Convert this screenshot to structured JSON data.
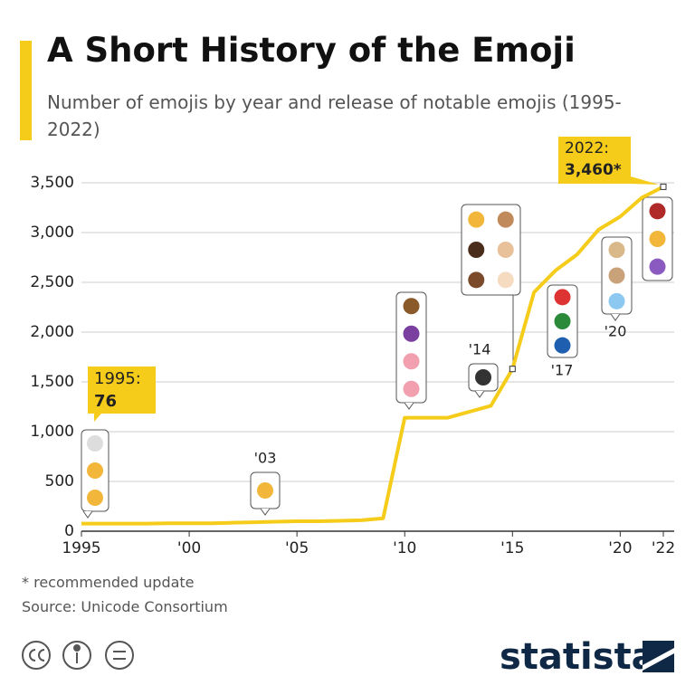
{
  "title": "A Short History of the Emoji",
  "subtitle": "Number of emojis by year and release of notable emojis (1995-2022)",
  "chart_data": {
    "type": "line",
    "x": [
      1995,
      1996,
      1997,
      1998,
      1999,
      2000,
      2001,
      2002,
      2003,
      2004,
      2005,
      2006,
      2007,
      2008,
      2009,
      2010,
      2011,
      2012,
      2013,
      2014,
      2015,
      2016,
      2017,
      2018,
      2019,
      2020,
      2021,
      2022
    ],
    "values": [
      76,
      76,
      76,
      76,
      80,
      80,
      80,
      85,
      90,
      95,
      100,
      100,
      105,
      110,
      130,
      1140,
      1140,
      1140,
      1200,
      1260,
      1630,
      2400,
      2620,
      2780,
      3030,
      3160,
      3350,
      3460
    ],
    "color": "#f5cc1a",
    "xlim": [
      1995,
      2022
    ],
    "xticks": [
      {
        "value": 1995,
        "label": "1995"
      },
      {
        "value": 2000,
        "label": "'00"
      },
      {
        "value": 2005,
        "label": "'05"
      },
      {
        "value": 2010,
        "label": "'10"
      },
      {
        "value": 2015,
        "label": "'15"
      },
      {
        "value": 2020,
        "label": "'20"
      },
      {
        "value": 2022,
        "label": "'22"
      }
    ],
    "ylim": [
      0,
      3500
    ],
    "yticks": [
      0,
      500,
      {
        "value": 1000,
        "label": "1,000"
      },
      {
        "value": 1500,
        "label": "1,500"
      },
      {
        "value": 2000,
        "label": "2,000"
      },
      {
        "value": 2500,
        "label": "2,500"
      },
      {
        "value": 3000,
        "label": "3,000"
      },
      {
        "value": 3500,
        "label": "3,500"
      }
    ],
    "grid": true,
    "annotations": {
      "start": {
        "label": "1995:",
        "value": "76"
      },
      "end": {
        "label": "2022:",
        "value": "3,460*"
      }
    },
    "year_labels": [
      "'03",
      "'14",
      "'17",
      "'20"
    ]
  },
  "footnote": "* recommended update",
  "source": "Source: Unicode Consortium",
  "logo": "statista"
}
